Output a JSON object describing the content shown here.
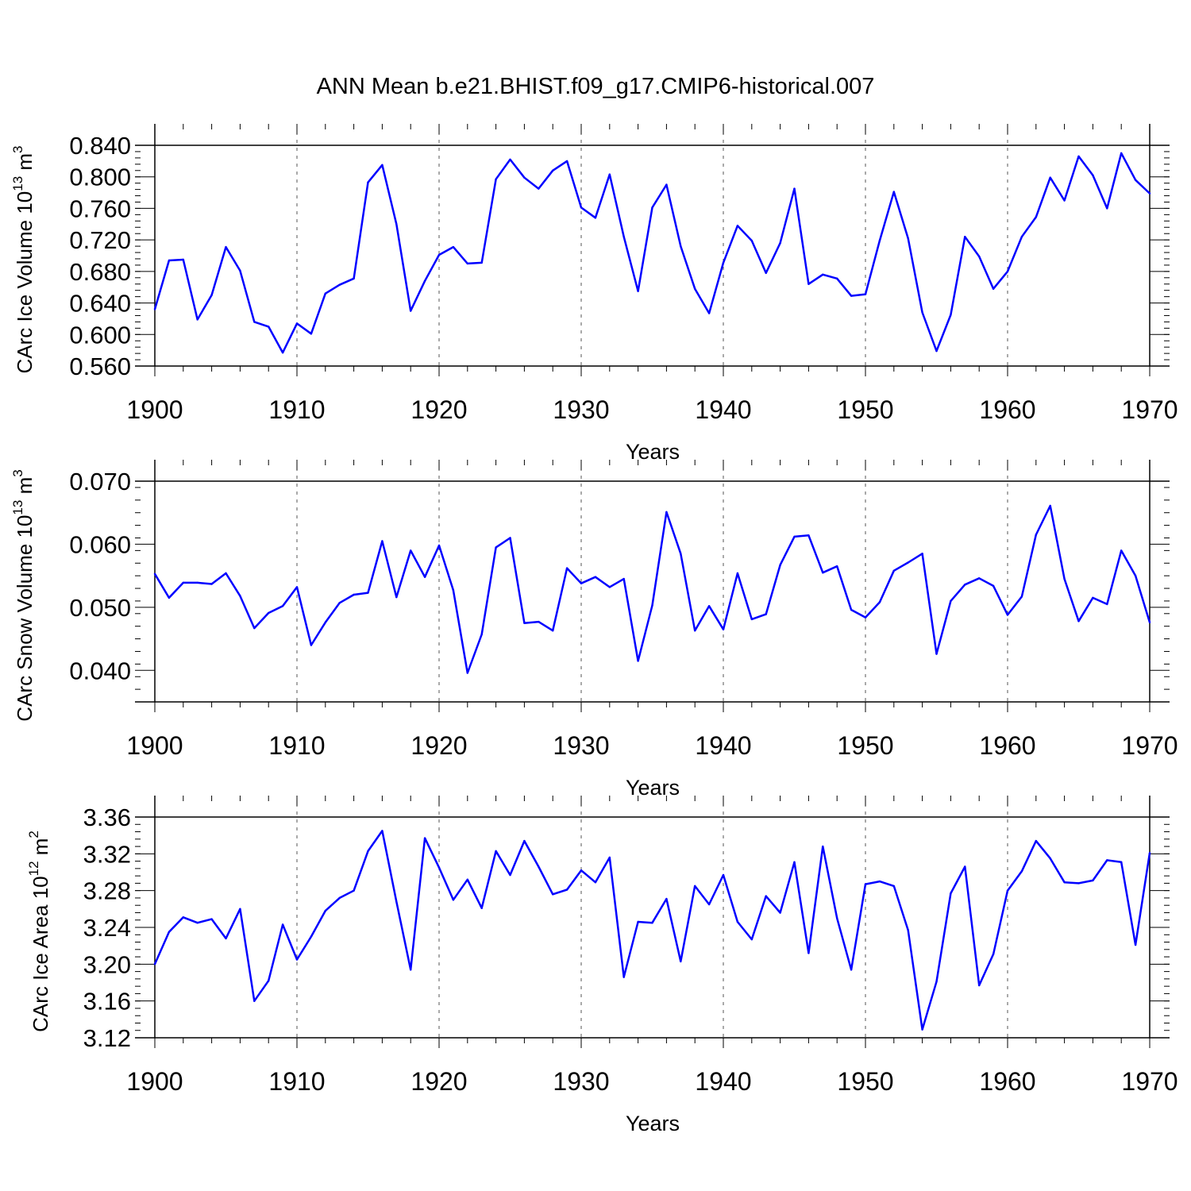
{
  "chart_data": [
    {
      "type": "line",
      "title": "ANN Mean b.e21.BHIST.f09_g17.CMIP6-historical.007",
      "xlabel": "Years",
      "ylabel": {
        "text": "CArc Ice Volume 10",
        "exponent": "13",
        "unit": "m",
        "unit_exponent": "3"
      },
      "xlim": [
        1900,
        1970
      ],
      "ylim": [
        0.56,
        0.84
      ],
      "xticks": [
        "1900",
        "1910",
        "1920",
        "1930",
        "1940",
        "1950",
        "1960",
        "1970"
      ],
      "yticks": [
        "0.560",
        "0.600",
        "0.640",
        "0.680",
        "0.720",
        "0.760",
        "0.800",
        "0.840"
      ],
      "ytick_values": [
        0.56,
        0.6,
        0.64,
        0.68,
        0.72,
        0.76,
        0.8,
        0.84
      ],
      "color": "#0000ff",
      "grid": "dashed vertical at decades",
      "x": [
        1900,
        1901,
        1902,
        1903,
        1904,
        1905,
        1906,
        1907,
        1908,
        1909,
        1910,
        1911,
        1912,
        1913,
        1914,
        1915,
        1916,
        1917,
        1918,
        1919,
        1920,
        1921,
        1922,
        1923,
        1924,
        1925,
        1926,
        1927,
        1928,
        1929,
        1930,
        1931,
        1932,
        1933,
        1934,
        1935,
        1936,
        1937,
        1938,
        1939,
        1940,
        1941,
        1942,
        1943,
        1944,
        1945,
        1946,
        1947,
        1948,
        1949,
        1950,
        1951,
        1952,
        1953,
        1954,
        1955,
        1956,
        1957,
        1958,
        1959,
        1960,
        1961,
        1962,
        1963,
        1964,
        1965,
        1966,
        1967,
        1968,
        1969,
        1970
      ],
      "values": [
        0.632,
        0.694,
        0.695,
        0.619,
        0.65,
        0.711,
        0.681,
        0.616,
        0.61,
        0.577,
        0.614,
        0.601,
        0.652,
        0.663,
        0.671,
        0.793,
        0.815,
        0.74,
        0.63,
        0.668,
        0.701,
        0.711,
        0.69,
        0.691,
        0.797,
        0.822,
        0.799,
        0.785,
        0.808,
        0.82,
        0.761,
        0.748,
        0.803,
        0.724,
        0.655,
        0.761,
        0.79,
        0.712,
        0.658,
        0.627,
        0.691,
        0.738,
        0.719,
        0.678,
        0.716,
        0.785,
        0.664,
        0.676,
        0.671,
        0.649,
        0.651,
        0.719,
        0.781,
        0.722,
        0.628,
        0.579,
        0.625,
        0.724,
        0.699,
        0.658,
        0.68,
        0.724,
        0.749,
        0.799,
        0.77,
        0.826,
        0.802,
        0.76,
        0.83,
        0.796,
        0.779
      ]
    },
    {
      "type": "line",
      "title": "",
      "xlabel": "Years",
      "ylabel": {
        "text": "CArc Snow Volume 10",
        "exponent": "13",
        "unit": "m",
        "unit_exponent": "3"
      },
      "xlim": [
        1900,
        1970
      ],
      "ylim": [
        0.035,
        0.07
      ],
      "xticks": [
        "1900",
        "1910",
        "1920",
        "1930",
        "1940",
        "1950",
        "1960",
        "1970"
      ],
      "yticks": [
        "0.040",
        "0.050",
        "0.060",
        "0.070"
      ],
      "ytick_values": [
        0.04,
        0.05,
        0.06,
        0.07
      ],
      "color": "#0000ff",
      "grid": "dashed vertical at decades",
      "x": [
        1900,
        1901,
        1902,
        1903,
        1904,
        1905,
        1906,
        1907,
        1908,
        1909,
        1910,
        1911,
        1912,
        1913,
        1914,
        1915,
        1916,
        1917,
        1918,
        1919,
        1920,
        1921,
        1922,
        1923,
        1924,
        1925,
        1926,
        1927,
        1928,
        1929,
        1930,
        1931,
        1932,
        1933,
        1934,
        1935,
        1936,
        1937,
        1938,
        1939,
        1940,
        1941,
        1942,
        1943,
        1944,
        1945,
        1946,
        1947,
        1948,
        1949,
        1950,
        1951,
        1952,
        1953,
        1954,
        1955,
        1956,
        1957,
        1958,
        1959,
        1960,
        1961,
        1962,
        1963,
        1964,
        1965,
        1966,
        1967,
        1968,
        1969,
        1970
      ],
      "values": [
        0.0553,
        0.0515,
        0.0539,
        0.0539,
        0.0537,
        0.0554,
        0.0518,
        0.0467,
        0.0491,
        0.0502,
        0.0532,
        0.044,
        0.0476,
        0.0507,
        0.052,
        0.0523,
        0.0605,
        0.0516,
        0.059,
        0.0548,
        0.0598,
        0.0527,
        0.0396,
        0.0457,
        0.0595,
        0.061,
        0.0475,
        0.0477,
        0.0463,
        0.0562,
        0.0538,
        0.0548,
        0.0532,
        0.0545,
        0.0415,
        0.0503,
        0.0651,
        0.0585,
        0.0463,
        0.0502,
        0.0465,
        0.0554,
        0.0481,
        0.0489,
        0.0567,
        0.0612,
        0.0614,
        0.0555,
        0.0565,
        0.0496,
        0.0484,
        0.0508,
        0.0558,
        0.0571,
        0.0585,
        0.0426,
        0.051,
        0.0536,
        0.0546,
        0.0534,
        0.0488,
        0.0517,
        0.0615,
        0.0661,
        0.0545,
        0.0478,
        0.0515,
        0.0505,
        0.059,
        0.055,
        0.0476
      ]
    },
    {
      "type": "line",
      "title": "",
      "xlabel": "Years",
      "ylabel": {
        "text": "CArc Ice Area 10",
        "exponent": "12",
        "unit": "m",
        "unit_exponent": "2"
      },
      "xlim": [
        1900,
        1970
      ],
      "ylim": [
        3.12,
        3.36
      ],
      "xticks": [
        "1900",
        "1910",
        "1920",
        "1930",
        "1940",
        "1950",
        "1960",
        "1970"
      ],
      "yticks": [
        "3.12",
        "3.16",
        "3.20",
        "3.24",
        "3.28",
        "3.32",
        "3.36"
      ],
      "ytick_values": [
        3.12,
        3.16,
        3.2,
        3.24,
        3.28,
        3.32,
        3.36
      ],
      "color": "#0000ff",
      "grid": "dashed vertical at decades",
      "x": [
        1900,
        1901,
        1902,
        1903,
        1904,
        1905,
        1906,
        1907,
        1908,
        1909,
        1910,
        1911,
        1912,
        1913,
        1914,
        1915,
        1916,
        1917,
        1918,
        1919,
        1920,
        1921,
        1922,
        1923,
        1924,
        1925,
        1926,
        1927,
        1928,
        1929,
        1930,
        1931,
        1932,
        1933,
        1934,
        1935,
        1936,
        1937,
        1938,
        1939,
        1940,
        1941,
        1942,
        1943,
        1944,
        1945,
        1946,
        1947,
        1948,
        1949,
        1950,
        1951,
        1952,
        1953,
        1954,
        1955,
        1956,
        1957,
        1958,
        1959,
        1960,
        1961,
        1962,
        1963,
        1964,
        1965,
        1966,
        1967,
        1968,
        1969,
        1970
      ],
      "values": [
        3.2,
        3.235,
        3.251,
        3.245,
        3.249,
        3.228,
        3.26,
        3.16,
        3.182,
        3.243,
        3.205,
        3.23,
        3.258,
        3.272,
        3.28,
        3.323,
        3.345,
        3.268,
        3.194,
        3.337,
        3.305,
        3.27,
        3.292,
        3.261,
        3.323,
        3.297,
        3.334,
        3.306,
        3.276,
        3.281,
        3.302,
        3.289,
        3.316,
        3.186,
        3.246,
        3.245,
        3.271,
        3.203,
        3.285,
        3.265,
        3.297,
        3.246,
        3.227,
        3.274,
        3.256,
        3.311,
        3.212,
        3.328,
        3.25,
        3.194,
        3.287,
        3.29,
        3.285,
        3.237,
        3.129,
        3.181,
        3.277,
        3.306,
        3.177,
        3.211,
        3.28,
        3.301,
        3.334,
        3.315,
        3.289,
        3.288,
        3.291,
        3.313,
        3.311,
        3.221,
        3.321
      ]
    }
  ]
}
